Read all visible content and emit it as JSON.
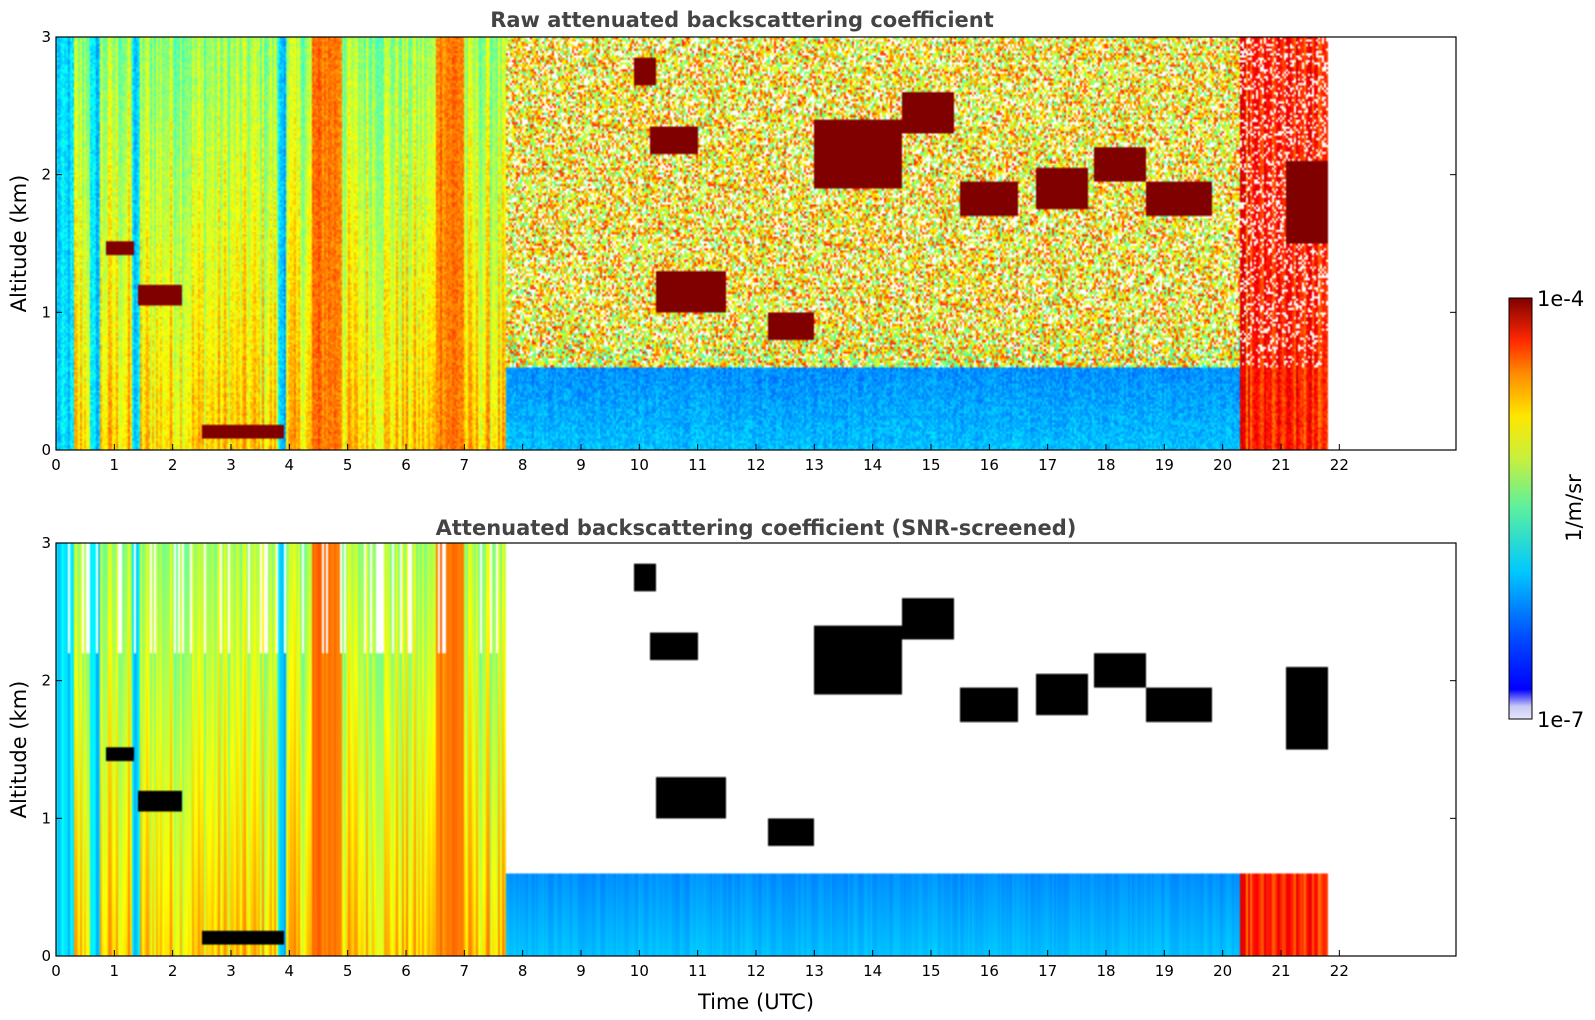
{
  "chart_data": [
    {
      "type": "heatmap",
      "title": "Raw attenuated backscattering coefficient",
      "xlabel": "",
      "ylabel": "Altitude (km)",
      "xlim": [
        0,
        24
      ],
      "ylim": [
        0,
        3
      ],
      "x_ticks": [
        "0",
        "1",
        "2",
        "3",
        "4",
        "5",
        "6",
        "7",
        "8",
        "9",
        "10",
        "11",
        "12",
        "13",
        "14",
        "15",
        "16",
        "17",
        "18",
        "19",
        "20",
        "21",
        "22"
      ],
      "y_ticks": [
        "0",
        "1",
        "2",
        "3"
      ],
      "screened": false
    },
    {
      "type": "heatmap",
      "title": "Attenuated backscattering coefficient (SNR-screened)",
      "xlabel": "Time (UTC)",
      "ylabel": "Altitude (km)",
      "xlim": [
        0,
        24
      ],
      "ylim": [
        0,
        3
      ],
      "x_ticks": [
        "0",
        "1",
        "2",
        "3",
        "4",
        "5",
        "6",
        "7",
        "8",
        "9",
        "10",
        "11",
        "12",
        "13",
        "14",
        "15",
        "16",
        "17",
        "18",
        "19",
        "20",
        "21",
        "22"
      ],
      "y_ticks": [
        "0",
        "1",
        "2",
        "3"
      ],
      "screened": true
    }
  ],
  "colorbar": {
    "label": "1/m/sr",
    "max_label": "1e-4",
    "min_label": "1e-7",
    "scale": "log",
    "colormap": "jet"
  },
  "data_extent_hours": 21.8,
  "cloud_layers": [
    {
      "t0": 0.85,
      "t1": 1.35,
      "z0": 1.42,
      "z1": 1.52
    },
    {
      "t0": 1.4,
      "t1": 2.15,
      "z0": 1.05,
      "z1": 1.2
    },
    {
      "t0": 2.5,
      "t1": 3.9,
      "z0": 0.08,
      "z1": 0.18
    },
    {
      "t0": 9.9,
      "t1": 10.3,
      "z0": 2.65,
      "z1": 2.85
    },
    {
      "t0": 10.2,
      "t1": 11.0,
      "z0": 2.15,
      "z1": 2.35
    },
    {
      "t0": 13.0,
      "t1": 14.5,
      "z0": 1.9,
      "z1": 2.4
    },
    {
      "t0": 14.5,
      "t1": 15.4,
      "z0": 2.3,
      "z1": 2.6
    },
    {
      "t0": 15.5,
      "t1": 16.5,
      "z0": 1.7,
      "z1": 1.95
    },
    {
      "t0": 16.8,
      "t1": 17.7,
      "z0": 1.75,
      "z1": 2.05
    },
    {
      "t0": 17.8,
      "t1": 18.7,
      "z0": 1.95,
      "z1": 2.2
    },
    {
      "t0": 18.7,
      "t1": 19.8,
      "z0": 1.7,
      "z1": 1.95
    },
    {
      "t0": 10.3,
      "t1": 11.5,
      "z0": 1.0,
      "z1": 1.3
    },
    {
      "t0": 12.2,
      "t1": 13.0,
      "z0": 0.8,
      "z1": 1.0
    },
    {
      "t0": 21.1,
      "t1": 21.8,
      "z0": 1.5,
      "z1": 2.1
    }
  ]
}
